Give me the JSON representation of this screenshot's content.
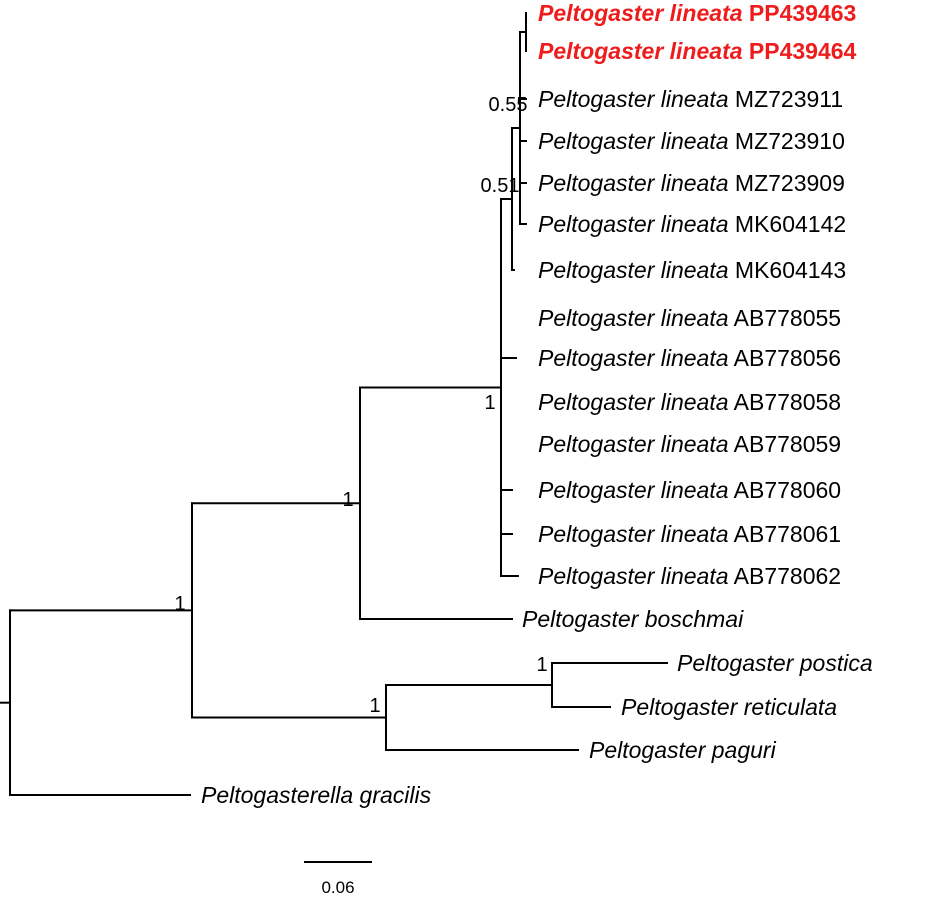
{
  "highlight_color": "#ee1c1c",
  "scale_bar": {
    "label": "0.06"
  },
  "taxa": [
    {
      "id": "t1",
      "genus": "Peltogaster",
      "species": "lineata",
      "accession": "PP439463",
      "highlighted": true
    },
    {
      "id": "t2",
      "genus": "Peltogaster",
      "species": "lineata",
      "accession": "PP439464",
      "highlighted": true
    },
    {
      "id": "t3",
      "genus": "Peltogaster",
      "species": "lineata",
      "accession": "MZ723911",
      "highlighted": false
    },
    {
      "id": "t4",
      "genus": "Peltogaster",
      "species": "lineata",
      "accession": "MZ723910",
      "highlighted": false
    },
    {
      "id": "t5",
      "genus": "Peltogaster",
      "species": "lineata",
      "accession": "MZ723909",
      "highlighted": false
    },
    {
      "id": "t6",
      "genus": "Peltogaster",
      "species": "lineata",
      "accession": "MK604142",
      "highlighted": false
    },
    {
      "id": "t7",
      "genus": "Peltogaster",
      "species": "lineata",
      "accession": "MK604143",
      "highlighted": false
    },
    {
      "id": "t8",
      "genus": "Peltogaster",
      "species": "lineata",
      "accession": "AB778055",
      "highlighted": false
    },
    {
      "id": "t9",
      "genus": "Peltogaster",
      "species": "lineata",
      "accession": "AB778056",
      "highlighted": false
    },
    {
      "id": "t10",
      "genus": "Peltogaster",
      "species": "lineata",
      "accession": "AB778058",
      "highlighted": false
    },
    {
      "id": "t11",
      "genus": "Peltogaster",
      "species": "lineata",
      "accession": "AB778059",
      "highlighted": false
    },
    {
      "id": "t12",
      "genus": "Peltogaster",
      "species": "lineata",
      "accession": "AB778060",
      "highlighted": false
    },
    {
      "id": "t13",
      "genus": "Peltogaster",
      "species": "lineata",
      "accession": "AB778061",
      "highlighted": false
    },
    {
      "id": "t14",
      "genus": "Peltogaster",
      "species": "lineata",
      "accession": "AB778062",
      "highlighted": false
    },
    {
      "id": "t15",
      "genus": "Peltogaster",
      "species": "boschmai",
      "accession": "",
      "highlighted": false
    },
    {
      "id": "t16",
      "genus": "Peltogaster",
      "species": "postica",
      "accession": "",
      "highlighted": false
    },
    {
      "id": "t17",
      "genus": "Peltogaster",
      "species": "reticulata",
      "accession": "",
      "highlighted": false
    },
    {
      "id": "t18",
      "genus": "Peltogaster",
      "species": "paguri",
      "accession": "",
      "highlighted": false
    },
    {
      "id": "t19",
      "genus": "Peltogasterella",
      "species": "gracilis",
      "accession": "",
      "highlighted": false
    }
  ],
  "supports": {
    "n_root_ingroup": "1",
    "n_boschmai_lineata": "1",
    "n_lineata": "1",
    "n_051": "0.51",
    "n_055": "0.55",
    "n_postica_group": "1",
    "n_postica_reticulata": "1"
  }
}
